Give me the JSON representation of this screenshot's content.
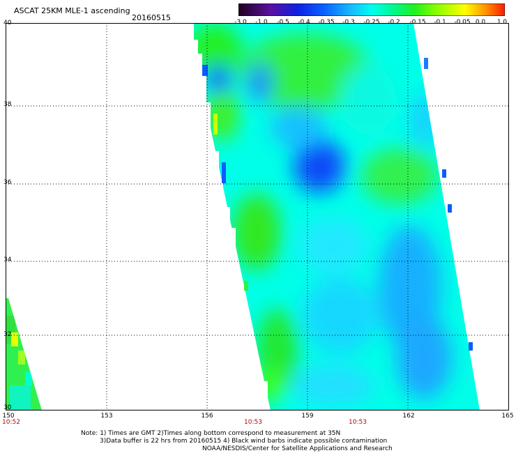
{
  "header": {
    "title": "ASCAT 25KM MLE-1 ascending",
    "date": "20160515"
  },
  "colorbar": {
    "labels": [
      "-3.0",
      "-1.0",
      "-0.5",
      "-0.4",
      "-0.35",
      "-0.3",
      "-0.25",
      "-0.2",
      "-0.15",
      "-0.1",
      "-0.05",
      "0.0",
      "1.0"
    ],
    "colors": [
      "#2a0030",
      "#4a0080",
      "#1020e0",
      "#0a5cff",
      "#1a9cff",
      "#18d8ff",
      "#00ffe0",
      "#00f060",
      "#40ff00",
      "#a8ff00",
      "#ffff00",
      "#ff8000",
      "#ff2000"
    ]
  },
  "map": {
    "lat_labels": [
      "40",
      "38",
      "36",
      "34",
      "32",
      "30"
    ],
    "lon_labels": [
      "150",
      "153",
      "156",
      "159",
      "162",
      "165"
    ],
    "lat_range": [
      30,
      40
    ],
    "lon_range": [
      150,
      165
    ],
    "pass_times": [
      "10:52",
      "10:53",
      "10:53"
    ]
  },
  "note": {
    "line1": "Note: 1) Times are GMT 2)Times along bottom correspond to measurement at 35N",
    "line2": "3)Data buffer is 22 hrs from 20160515 4) Black wind barbs indicate possible contamination",
    "line3": "NOAA/NESDIS/Center for Satellite Applications and Research"
  }
}
